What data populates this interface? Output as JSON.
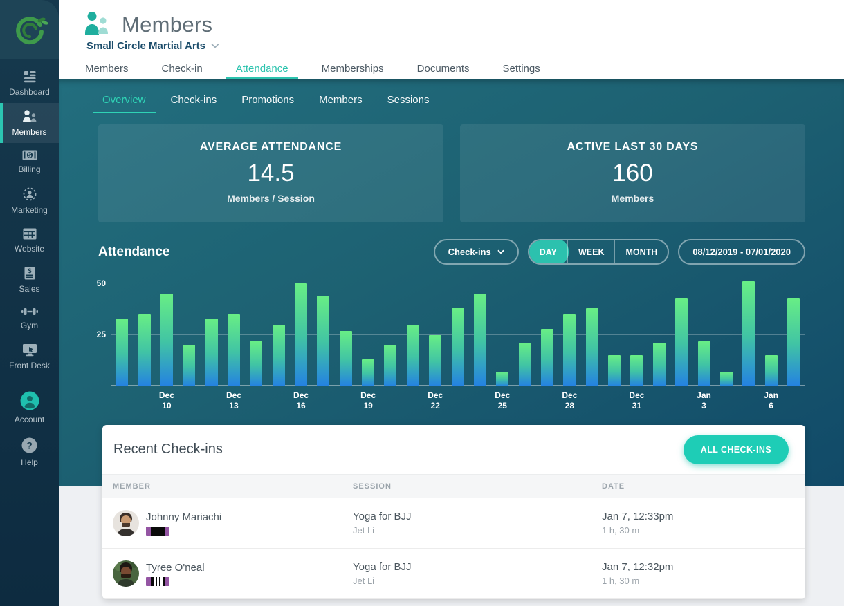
{
  "colors": {
    "accent_teal": "#2cc3ae",
    "bar_top": "#68ee85",
    "bar_bottom": "#2481e2",
    "belt_purple": "#9455a3",
    "hero_dark": "#114a68"
  },
  "sidebar": {
    "items": [
      {
        "label": "Dashboard",
        "icon": "dashboard-icon",
        "active": false
      },
      {
        "label": "Members",
        "icon": "members-icon",
        "active": true
      },
      {
        "label": "Billing",
        "icon": "billing-icon",
        "active": false
      },
      {
        "label": "Marketing",
        "icon": "marketing-icon",
        "active": false
      },
      {
        "label": "Website",
        "icon": "website-icon",
        "active": false
      },
      {
        "label": "Sales",
        "icon": "sales-icon",
        "active": false
      },
      {
        "label": "Gym",
        "icon": "gym-icon",
        "active": false
      },
      {
        "label": "Front Desk",
        "icon": "front-desk-icon",
        "active": false
      },
      {
        "label": "Account",
        "icon": "account-icon",
        "active": false
      },
      {
        "label": "Help",
        "icon": "help-icon",
        "active": false
      }
    ]
  },
  "header": {
    "title": "Members",
    "gym_name": "Small Circle Martial Arts",
    "tabs": [
      "Members",
      "Check-in",
      "Attendance",
      "Memberships",
      "Documents",
      "Settings"
    ],
    "active_tab": "Attendance"
  },
  "subnav": {
    "tabs": [
      "Overview",
      "Check-ins",
      "Promotions",
      "Members",
      "Sessions"
    ],
    "active": "Overview"
  },
  "stats": [
    {
      "title": "AVERAGE ATTENDANCE",
      "value": "14.5",
      "unit": "Members / Session"
    },
    {
      "title": "ACTIVE LAST 30 DAYS",
      "value": "160",
      "unit": "Members"
    }
  ],
  "attendance": {
    "section_title": "Attendance",
    "metric_dropdown": "Check-ins",
    "period_options": [
      "DAY",
      "WEEK",
      "MONTH"
    ],
    "active_period": "DAY",
    "date_range": "08/12/2019 - 07/01/2020"
  },
  "chart_data": {
    "type": "bar",
    "title": "Attendance (Check-ins per day)",
    "legend": "none",
    "grid": "horizontal",
    "ylim": [
      0,
      52.7
    ],
    "yticks": [
      25,
      50
    ],
    "values": [
      33,
      35,
      45,
      20,
      33,
      35,
      22,
      30,
      50,
      44,
      27,
      13,
      20,
      30,
      25,
      38,
      45,
      7,
      21,
      28,
      35,
      38,
      15,
      15,
      21,
      43,
      22,
      7,
      51,
      15,
      43
    ],
    "x_tick_labels": [
      "",
      "",
      "Dec|10",
      "",
      "",
      "Dec|13",
      "",
      "",
      "Dec|16",
      "",
      "",
      "Dec|19",
      "",
      "",
      "Dec|22",
      "",
      "",
      "Dec|25",
      "",
      "",
      "Dec|28",
      "",
      "",
      "Dec|31",
      "",
      "",
      "Jan 3",
      "",
      "",
      "Jan 6",
      ""
    ]
  },
  "recent": {
    "title": "Recent Check-ins",
    "button": "ALL CHECK-INS",
    "columns": [
      "MEMBER",
      "SESSION",
      "DATE"
    ],
    "rows": [
      {
        "member": "Johnny Mariachi",
        "belt_stripes": 0,
        "session": "Yoga for BJJ",
        "instructor": "Jet Li",
        "date": "Jan 7, 12:33pm",
        "duration": "1 h, 30 m"
      },
      {
        "member": "Tyree O'neal",
        "belt_stripes": 3,
        "session": "Yoga for BJJ",
        "instructor": "Jet Li",
        "date": "Jan 7, 12:32pm",
        "duration": "1 h, 30 m"
      }
    ]
  }
}
